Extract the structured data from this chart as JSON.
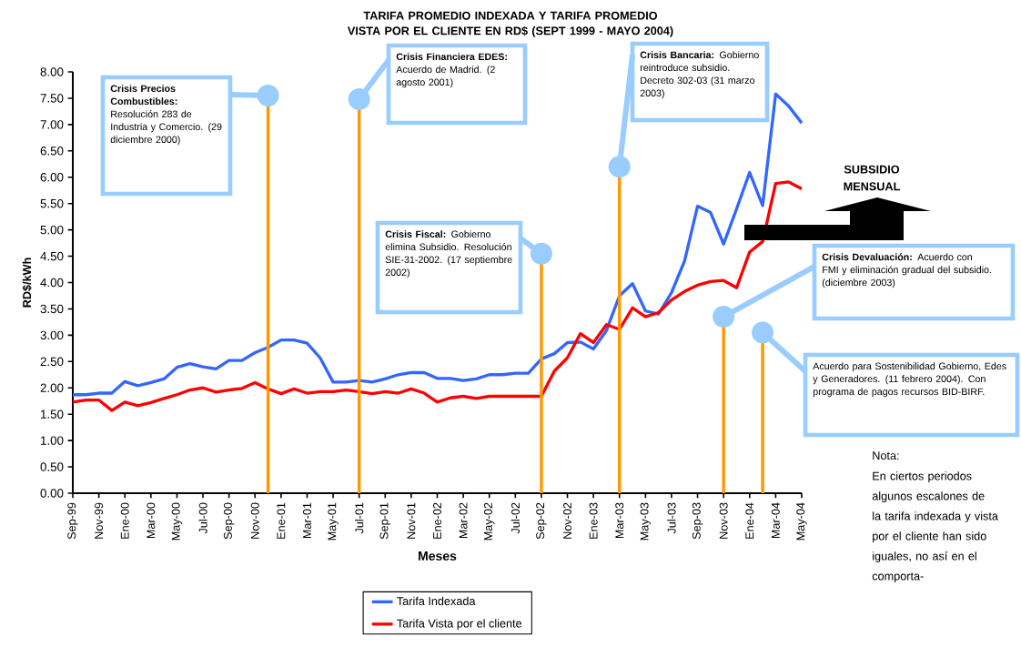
{
  "chart_data": {
    "type": "line",
    "title": "TARIFA PROMEDIO INDEXADA Y TARIFA PROMEDIO VISTA POR EL CLIENTE EN RD$ (SEPT 1999 - MAYO 2004)",
    "xlabel": "Meses",
    "ylabel": "RD$/kWh",
    "x": [
      "1999-09",
      "1999-10",
      "1999-11",
      "1999-12",
      "2000-01",
      "2000-02",
      "2000-03",
      "2000-04",
      "2000-05",
      "2000-06",
      "2000-07",
      "2000-08",
      "2000-09",
      "2000-10",
      "2000-11",
      "2000-12",
      "2001-01",
      "2001-02",
      "2001-03",
      "2001-04",
      "2001-05",
      "2001-06",
      "2001-07",
      "2001-08",
      "2001-09",
      "2001-10",
      "2001-11",
      "2001-12",
      "2002-01",
      "2002-02",
      "2002-03",
      "2002-04",
      "2002-05",
      "2002-06",
      "2002-07",
      "2002-08",
      "2002-09",
      "2002-10",
      "2002-11",
      "2002-12",
      "2003-01",
      "2003-02",
      "2003-03",
      "2003-04",
      "2003-05",
      "2003-06",
      "2003-07",
      "2003-08",
      "2003-09",
      "2003-10",
      "2003-11",
      "2003-12",
      "2004-01",
      "2004-02",
      "2004-03",
      "2004-04",
      "2004-05"
    ],
    "series": [
      {
        "name": "Tarifa Indexada",
        "color": "#3366ff",
        "values": [
          1.87,
          1.87,
          1.9,
          1.9,
          2.12,
          2.04,
          2.1,
          2.17,
          2.39,
          2.46,
          2.4,
          2.36,
          2.52,
          2.52,
          2.67,
          2.77,
          2.91,
          2.91,
          2.85,
          2.57,
          2.11,
          2.11,
          2.14,
          2.11,
          2.17,
          2.25,
          2.29,
          2.29,
          2.18,
          2.18,
          2.14,
          2.17,
          2.25,
          2.25,
          2.28,
          2.28,
          2.55,
          2.65,
          2.86,
          2.87,
          2.74,
          3.09,
          3.75,
          3.98,
          3.46,
          3.4,
          3.81,
          4.41,
          5.45,
          5.33,
          4.73,
          5.4,
          6.09,
          5.46,
          7.58,
          7.35,
          7.03
        ]
      },
      {
        "name": "Tarifa Vista por el cliente",
        "color": "#ff0000",
        "values": [
          1.73,
          1.77,
          1.77,
          1.57,
          1.73,
          1.66,
          1.72,
          1.8,
          1.87,
          1.96,
          2.0,
          1.92,
          1.96,
          1.99,
          2.1,
          1.98,
          1.89,
          1.98,
          1.9,
          1.93,
          1.93,
          1.96,
          1.93,
          1.89,
          1.93,
          1.9,
          1.98,
          1.9,
          1.73,
          1.81,
          1.84,
          1.8,
          1.84,
          1.84,
          1.84,
          1.84,
          1.84,
          2.32,
          2.57,
          3.03,
          2.86,
          3.2,
          3.11,
          3.52,
          3.35,
          3.43,
          3.67,
          3.83,
          3.95,
          4.02,
          4.04,
          3.9,
          4.58,
          4.78,
          5.88,
          5.91,
          5.78
        ]
      }
    ],
    "xlim": [
      "1999-09",
      "2004-05"
    ],
    "xticks": [
      {
        "value": "1999-09",
        "label": "Sep-99"
      },
      {
        "value": "1999-11",
        "label": "Nov-99"
      },
      {
        "value": "2000-01",
        "label": "Ene-00"
      },
      {
        "value": "2000-03",
        "label": "Mar-00"
      },
      {
        "value": "2000-05",
        "label": "May-00"
      },
      {
        "value": "2000-07",
        "label": "Jul-00"
      },
      {
        "value": "2000-09",
        "label": "Sep-00"
      },
      {
        "value": "2000-11",
        "label": "Nov-00"
      },
      {
        "value": "2001-01",
        "label": "Ene-01"
      },
      {
        "value": "2001-03",
        "label": "Mar-01"
      },
      {
        "value": "2001-05",
        "label": "May-01"
      },
      {
        "value": "2001-07",
        "label": "Jul-01"
      },
      {
        "value": "2001-09",
        "label": "Sep-01"
      },
      {
        "value": "2001-11",
        "label": "Nov-01"
      },
      {
        "value": "2002-01",
        "label": "Ene-02"
      },
      {
        "value": "2002-03",
        "label": "Mar-02"
      },
      {
        "value": "2002-05",
        "label": "May-02"
      },
      {
        "value": "2002-07",
        "label": "Jul-02"
      },
      {
        "value": "2002-09",
        "label": "Sep-02"
      },
      {
        "value": "2002-11",
        "label": "Nov-02"
      },
      {
        "value": "2003-01",
        "label": "Ene-03"
      },
      {
        "value": "2003-03",
        "label": "Mar-03"
      },
      {
        "value": "2003-05",
        "label": "May-03"
      },
      {
        "value": "2003-07",
        "label": "Jul-03"
      },
      {
        "value": "2003-09",
        "label": "Sep-03"
      },
      {
        "value": "2003-11",
        "label": "Nov-03"
      },
      {
        "value": "2004-01",
        "label": "Ene-04"
      },
      {
        "value": "2004-03",
        "label": "Mar-04"
      },
      {
        "value": "2004-05",
        "label": "May-04"
      }
    ],
    "ylim": [
      0,
      8
    ],
    "yticks": [
      {
        "value": 0,
        "label": "0.00"
      },
      {
        "value": 0.5,
        "label": "0.50"
      },
      {
        "value": 1,
        "label": "1.00"
      },
      {
        "value": 1.5,
        "label": "1.50"
      },
      {
        "value": 2,
        "label": "2.00"
      },
      {
        "value": 2.5,
        "label": "2.50"
      },
      {
        "value": 3,
        "label": "3.00"
      },
      {
        "value": 3.5,
        "label": "3.50"
      },
      {
        "value": 4,
        "label": "4.00"
      },
      {
        "value": 4.5,
        "label": "4.50"
      },
      {
        "value": 5,
        "label": "5.00"
      },
      {
        "value": 5.5,
        "label": "5.50"
      },
      {
        "value": 6,
        "label": "6.00"
      },
      {
        "value": 6.5,
        "label": "6.50"
      },
      {
        "value": 7,
        "label": "7.00"
      },
      {
        "value": 7.5,
        "label": "7.50"
      },
      {
        "value": 8,
        "label": "8.00"
      }
    ],
    "annotations": [
      {
        "text": "**Crisis Precios Combustibles:** Resolución 283 de Industria y Comercio. (29 diciembre 2000)",
        "x": "2000-12",
        "y": 7.55
      },
      {
        "text": "**Crisis Financiera EDES:** Acuerdo de Madrid. (2 agosto 2001)",
        "x": "2001-07",
        "y": 7.48
      },
      {
        "text": "**Crisis Fiscal:** Gobierno elimina Subsidio. Resolución SIE-31-2002. (17 septiembre 2002)",
        "x": "2002-09",
        "y": 4.55
      },
      {
        "text": "**Crisis Bancaria:** Gobierno reintroduce subsidio. Decreto 302-03 (31 marzo 2003)",
        "x": "2003-03",
        "y": 6.2
      },
      {
        "text": "**Crisis Devaluación:** Acuerdo con FMI y eliminación gradual del subsidio. (diciembre 2003)",
        "x": "2003-11",
        "y": 3.35
      },
      {
        "text": "Acuerdo para Sostenibilidad Gobierno, Edes y Generadores. (11 febrero 2004). Con programa de pagos recursos BID-BIRF.",
        "x": "2004-02",
        "y": 3.05
      },
      "SUBSIDIO MENSUAL",
      "Nota:",
      "En ciertos periodos algunos escalones de la tarifa indexada y vista por el cliente han sido iguales, no así en el comporta-"
    ],
    "ref_lines": [
      {
        "axis": "x",
        "value": "2000-12",
        "color": "#ff9900"
      },
      {
        "axis": "x",
        "value": "2001-07",
        "color": "#ff9900"
      },
      {
        "axis": "x",
        "value": "2002-09",
        "color": "#ff9900"
      },
      {
        "axis": "x",
        "value": "2003-03",
        "color": "#ff9900"
      },
      {
        "axis": "x",
        "value": "2003-11",
        "color": "#ff9900"
      },
      {
        "axis": "x",
        "value": "2004-02",
        "color": "#ff9900"
      }
    ],
    "legend": "bottom",
    "marker": "none",
    "line_style": "solid",
    "grid": false
  }
}
